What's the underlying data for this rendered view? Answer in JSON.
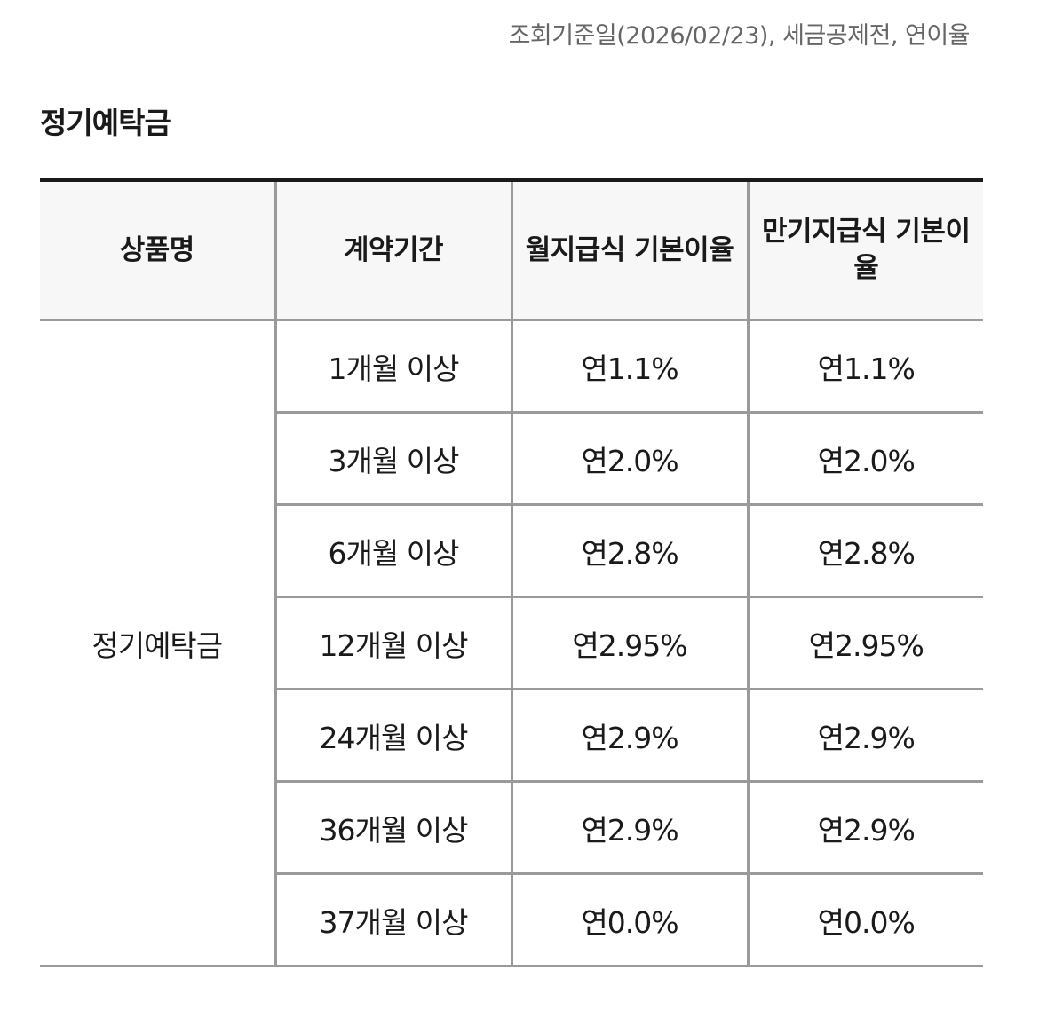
{
  "reference_note": "조회기준일(2026/02/23), 세금공제전, 연이율",
  "section_title": "정기예탁금",
  "table": {
    "headers": {
      "product": "상품명",
      "term": "계약기간",
      "monthly_rate": "월지급식 기본이율",
      "maturity_rate": "만기지급식 기본이율"
    },
    "product_name": "정기예탁금",
    "rows": [
      {
        "term": "1개월 이상",
        "monthly_rate": "연1.1%",
        "maturity_rate": "연1.1%"
      },
      {
        "term": "3개월 이상",
        "monthly_rate": "연2.0%",
        "maturity_rate": "연2.0%"
      },
      {
        "term": "6개월 이상",
        "monthly_rate": "연2.8%",
        "maturity_rate": "연2.8%"
      },
      {
        "term": "12개월 이상",
        "monthly_rate": "연2.95%",
        "maturity_rate": "연2.95%"
      },
      {
        "term": "24개월 이상",
        "monthly_rate": "연2.9%",
        "maturity_rate": "연2.9%"
      },
      {
        "term": "36개월 이상",
        "monthly_rate": "연2.9%",
        "maturity_rate": "연2.9%"
      },
      {
        "term": "37개월 이상",
        "monthly_rate": "연0.0%",
        "maturity_rate": "연0.0%"
      }
    ]
  },
  "colors": {
    "text": "#1a1a1a",
    "muted_text": "#666666",
    "header_bg": "#f7f7f7",
    "border": "#9a9a9a",
    "top_rule": "#1a1a1a"
  }
}
